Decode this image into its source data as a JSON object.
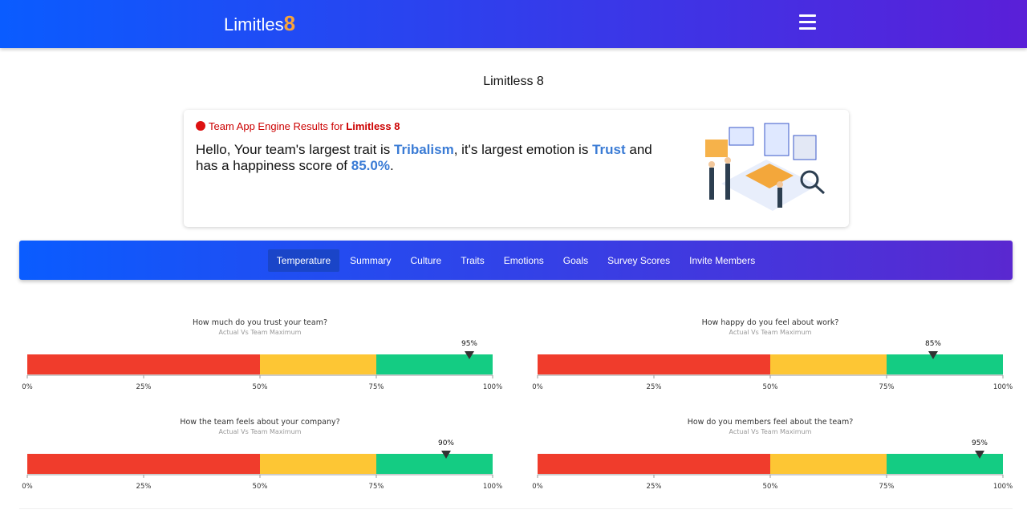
{
  "header": {
    "logo": "Limitles",
    "logo_mark": "8"
  },
  "page_title": "Limitless 8",
  "card": {
    "heading": "Team App Engine Results for",
    "heading_team": "Limitless 8",
    "intro": "Hello, Your team's largest trait is",
    "trait": "Tribalism",
    "mid": ", it's largest emotion is",
    "emotion": "Trust",
    "mid2": "and has a happiness score of",
    "score": "85.0%",
    "end": "."
  },
  "tabs": {
    "items": [
      "Temperature",
      "Summary",
      "Culture",
      "Traits",
      "Emotions",
      "Goals",
      "Survey Scores",
      "Invite Members"
    ],
    "active": 0
  },
  "chart_data": [
    {
      "type": "gauge",
      "title": "How much do you trust your team?",
      "subtitle": "Actual Vs Team Maximum",
      "value": 95,
      "value_label": "95%",
      "xlim": [
        0,
        100
      ],
      "xticks": [
        {
          "value": 0,
          "label": "0%"
        },
        {
          "value": 25,
          "label": "25%"
        },
        {
          "value": 50,
          "label": "50%"
        },
        {
          "value": 75,
          "label": "75%"
        },
        {
          "value": 100,
          "label": "100%"
        }
      ],
      "segments": [
        {
          "value": 50,
          "color": "#f03c2c"
        },
        {
          "value": 25,
          "color": "#fdc634"
        },
        {
          "value": 25,
          "color": "#14cc83"
        }
      ]
    },
    {
      "type": "gauge",
      "title": "How happy do you feel about work?",
      "subtitle": "Actual Vs Team Maximum",
      "value": 85,
      "value_label": "85%",
      "xlim": [
        0,
        100
      ],
      "xticks": [
        {
          "value": 0,
          "label": "0%"
        },
        {
          "value": 25,
          "label": "25%"
        },
        {
          "value": 50,
          "label": "50%"
        },
        {
          "value": 75,
          "label": "75%"
        },
        {
          "value": 100,
          "label": "100%"
        }
      ],
      "segments": [
        {
          "value": 50,
          "color": "#f03c2c"
        },
        {
          "value": 25,
          "color": "#fdc634"
        },
        {
          "value": 25,
          "color": "#14cc83"
        }
      ]
    },
    {
      "type": "gauge",
      "title": "How the team feels about your company?",
      "subtitle": "Actual Vs Team Maximum",
      "value": 90,
      "value_label": "90%",
      "xlim": [
        0,
        100
      ],
      "xticks": [
        {
          "value": 0,
          "label": "0%"
        },
        {
          "value": 25,
          "label": "25%"
        },
        {
          "value": 50,
          "label": "50%"
        },
        {
          "value": 75,
          "label": "75%"
        },
        {
          "value": 100,
          "label": "100%"
        }
      ],
      "segments": [
        {
          "value": 50,
          "color": "#f03c2c"
        },
        {
          "value": 25,
          "color": "#fdc634"
        },
        {
          "value": 25,
          "color": "#14cc83"
        }
      ]
    },
    {
      "type": "gauge",
      "title": "How do you members feel about the team?",
      "subtitle": "Actual Vs Team Maximum",
      "value": 95,
      "value_label": "95%",
      "xlim": [
        0,
        100
      ],
      "xticks": [
        {
          "value": 0,
          "label": "0%"
        },
        {
          "value": 25,
          "label": "25%"
        },
        {
          "value": 50,
          "label": "50%"
        },
        {
          "value": 75,
          "label": "75%"
        },
        {
          "value": 100,
          "label": "100%"
        }
      ],
      "segments": [
        {
          "value": 50,
          "color": "#f03c2c"
        },
        {
          "value": 25,
          "color": "#fdc634"
        },
        {
          "value": 25,
          "color": "#14cc83"
        }
      ]
    }
  ]
}
